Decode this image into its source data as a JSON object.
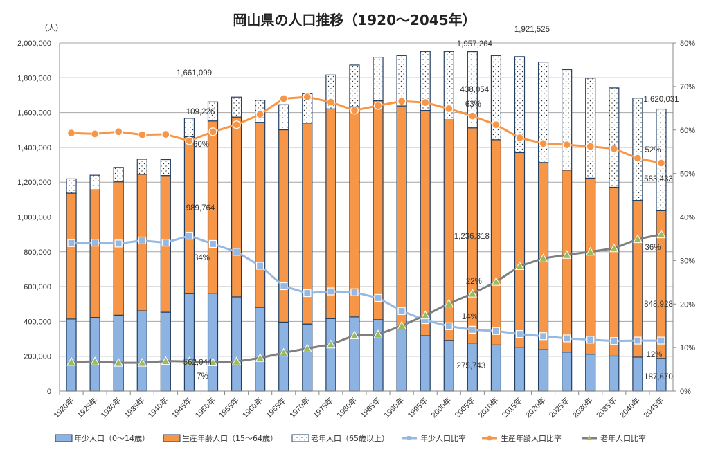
{
  "chart_data": {
    "type": "bar+line",
    "title": "岡山県の人口推移（1920～2045年）",
    "ylabel_left": "（人）",
    "categories": [
      "1920年",
      "1925年",
      "1930年",
      "1935年",
      "1940年",
      "1945年",
      "1950年",
      "1955年",
      "1960年",
      "1965年",
      "1970年",
      "1975年",
      "1980年",
      "1985年",
      "1990年",
      "1995年",
      "2000年",
      "2005年",
      "2010年",
      "2015年",
      "2020年",
      "2025年",
      "2030年",
      "2035年",
      "2040年",
      "2045年"
    ],
    "ylim_left": [
      0,
      2000000
    ],
    "yticks_left": [
      "0",
      "200,000",
      "400,000",
      "600,000",
      "800,000",
      "1,000,000",
      "1,200,000",
      "1,400,000",
      "1,600,000",
      "1,800,000",
      "2,000,000"
    ],
    "ylim_right": [
      0,
      80
    ],
    "yticks_right": [
      "0%",
      "10%",
      "20%",
      "30%",
      "40%",
      "50%",
      "60%",
      "70%",
      "80%"
    ],
    "grid": true,
    "legend_position": "bottom",
    "stacked_series": [
      {
        "name": "年少人口（0～14歳）",
        "color": "#8db3e2",
        "pattern": "solid",
        "values": [
          414000,
          423000,
          436000,
          461000,
          453000,
          560000,
          562044,
          541000,
          481000,
          396000,
          385000,
          416000,
          426000,
          410000,
          355000,
          318000,
          291000,
          275743,
          265000,
          252000,
          238000,
          224000,
          212000,
          201000,
          195000,
          187670
        ]
      },
      {
        "name": "生産年齢人口（15～64歳）",
        "color": "#f79646",
        "pattern": "solid",
        "values": [
          723000,
          733000,
          766000,
          784000,
          785000,
          901000,
          989764,
          1033000,
          1063000,
          1105000,
          1155000,
          1205000,
          1208000,
          1258000,
          1283000,
          1294000,
          1267000,
          1236318,
          1179000,
          1118000,
          1075000,
          1045000,
          1011000,
          970000,
          900000,
          848928
        ]
      },
      {
        "name": "老年人口（65歳以上）",
        "color": "#ffffff",
        "pattern": "dots",
        "values": [
          82000,
          84000,
          83000,
          87000,
          92000,
          106000,
          109226,
          115000,
          127000,
          144000,
          168000,
          195000,
          239000,
          250000,
          289000,
          339000,
          393000,
          438054,
          483000,
          551000,
          577000,
          578000,
          575000,
          571000,
          588000,
          583433
        ]
      }
    ],
    "totals": [
      1219000,
      1240000,
      1285000,
      1332000,
      1330000,
      1567000,
      1661099,
      1689000,
      1671000,
      1645000,
      1708000,
      1816000,
      1873000,
      1918000,
      1927000,
      1951000,
      1951000,
      1957264,
      1927000,
      1921525,
      1890000,
      1847000,
      1798000,
      1742000,
      1683000,
      1620031
    ],
    "ratio_series": [
      {
        "name": "年少人口比率",
        "color": "#95b9e3",
        "marker": "square",
        "values": [
          34.0,
          34.1,
          33.9,
          34.6,
          34.1,
          35.7,
          33.8,
          32.0,
          28.8,
          24.1,
          22.5,
          22.9,
          22.7,
          21.4,
          18.4,
          16.3,
          14.9,
          14.1,
          13.8,
          13.1,
          12.6,
          12.1,
          11.8,
          11.5,
          11.6,
          11.6
        ]
      },
      {
        "name": "生産年齢人口比率",
        "color": "#f79646",
        "marker": "circle",
        "values": [
          59.3,
          59.1,
          59.6,
          58.9,
          59.0,
          57.5,
          59.6,
          61.2,
          63.6,
          67.2,
          67.6,
          66.4,
          64.5,
          65.6,
          66.6,
          66.3,
          64.9,
          63.2,
          61.2,
          58.2,
          56.9,
          56.6,
          56.2,
          55.7,
          53.5,
          52.4
        ]
      },
      {
        "name": "老年人口比率",
        "color": "#7f7f7f",
        "marker": "triangle",
        "marker_color": "#9bbb59",
        "values": [
          6.7,
          6.8,
          6.5,
          6.5,
          6.9,
          6.8,
          6.6,
          6.8,
          7.6,
          8.8,
          9.8,
          10.7,
          12.8,
          13.0,
          15.0,
          17.4,
          20.1,
          22.4,
          25.1,
          28.7,
          30.5,
          31.3,
          32.0,
          32.8,
          34.9,
          36.0
        ]
      }
    ],
    "annotations": [
      {
        "year": "1950年",
        "texts": [
          "1,661,099",
          "109,226",
          "60%",
          "989,764",
          "34%",
          "562,044",
          "7%"
        ]
      },
      {
        "year": "2005年",
        "texts": [
          "1,957,264",
          "438,054",
          "63%",
          "1,236,318",
          "22%",
          "14%",
          "275,743"
        ]
      },
      {
        "year": "2015年",
        "texts": [
          "1,921,525"
        ]
      },
      {
        "year": "2045年",
        "texts": [
          "1,620,031",
          "52%",
          "583,433",
          "36%",
          "848,928",
          "12%",
          "187,670"
        ]
      }
    ]
  }
}
